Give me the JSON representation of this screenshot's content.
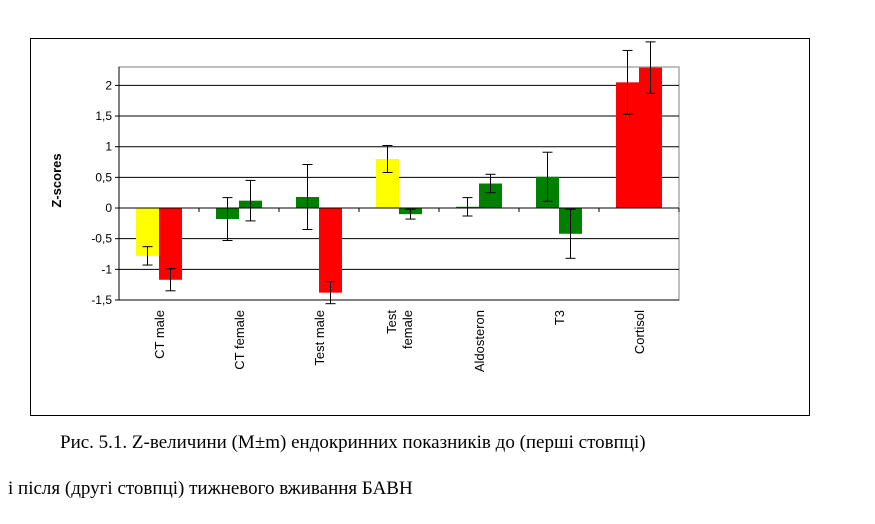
{
  "chart_data": {
    "type": "bar",
    "ylabel": "Z-scores",
    "ylim": [
      -1.5,
      2.3
    ],
    "yticks": [
      2,
      1.5,
      1,
      0.5,
      0,
      -0.5,
      -1,
      -1.5
    ],
    "ytick_labels": [
      "2",
      "1,5",
      "1",
      "0,5",
      "0",
      "-0,5",
      "-1",
      "-1,5"
    ],
    "grid": true,
    "categories": [
      {
        "lines": [
          "CT male"
        ]
      },
      {
        "lines": [
          "CT female"
        ]
      },
      {
        "lines": [
          "Test male"
        ]
      },
      {
        "lines": [
          "Test",
          "female"
        ]
      },
      {
        "lines": [
          "Aldosteron"
        ]
      },
      {
        "lines": [
          "T3"
        ]
      },
      {
        "lines": [
          "Cortisol"
        ]
      }
    ],
    "series": [
      {
        "values": [
          -0.78,
          -0.18,
          0.18,
          0.8,
          0.02,
          0.51,
          2.05
        ],
        "errors": [
          0.15,
          0.35,
          0.53,
          0.22,
          0.15,
          0.4,
          0.52
        ],
        "colors": [
          "#ffff00",
          "#008000",
          "#008000",
          "#ffff00",
          "#008000",
          "#008000",
          "#ff0000"
        ]
      },
      {
        "values": [
          -1.17,
          0.12,
          -1.38,
          -0.1,
          0.4,
          -0.42,
          2.29
        ],
        "errors": [
          0.18,
          0.33,
          0.18,
          0.08,
          0.15,
          0.4,
          0.42
        ],
        "colors": [
          "#ff0000",
          "#008000",
          "#ff0000",
          "#008000",
          "#008000",
          "#008000",
          "#ff0000"
        ]
      }
    ]
  },
  "caption": {
    "line1": "Рис. 5.1. Z-величини (M±m) ендокринних показників до (перші стовпці)",
    "line2": "і після (другі стовпці) тижневого вживання БАВН"
  }
}
